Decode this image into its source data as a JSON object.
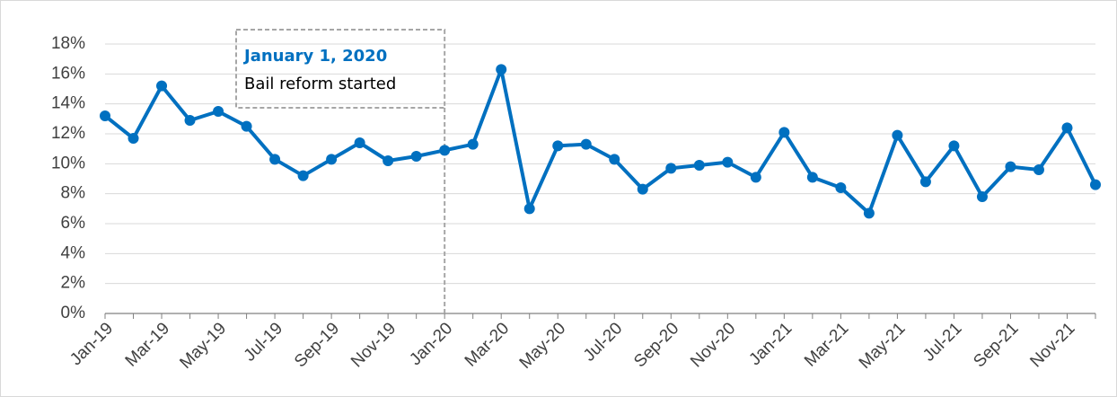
{
  "chart_data": {
    "type": "line",
    "categories": [
      "Jan-19",
      null,
      "Mar-19",
      null,
      "May-19",
      null,
      "Jul-19",
      null,
      "Sep-19",
      null,
      "Nov-19",
      null,
      "Jan-20",
      null,
      "Mar-20",
      null,
      "May-20",
      null,
      "Jul-20",
      null,
      "Sep-20",
      null,
      "Nov-20",
      null,
      "Jan-21",
      null,
      "Mar-21",
      null,
      "May-21",
      null,
      "Jul-21",
      null,
      "Sep-21",
      null,
      "Nov-21",
      null
    ],
    "series": [
      {
        "color": "#0070c0",
        "values": [
          13.2,
          11.7,
          15.2,
          12.9,
          13.5,
          12.5,
          10.3,
          9.2,
          10.3,
          11.4,
          10.2,
          10.5,
          10.9,
          11.3,
          16.3,
          7.0,
          11.2,
          11.3,
          10.3,
          8.3,
          9.7,
          9.9,
          10.1,
          9.1,
          12.1,
          9.1,
          8.4,
          6.7,
          11.9,
          8.8,
          11.2,
          7.8,
          9.8,
          9.6,
          12.4,
          8.6
        ]
      }
    ],
    "ylim": [
      0,
      18
    ],
    "yticks": [
      {
        "value": 0,
        "label": "0%"
      },
      {
        "value": 2,
        "label": "2%"
      },
      {
        "value": 4,
        "label": "4%"
      },
      {
        "value": 6,
        "label": "6%"
      },
      {
        "value": 8,
        "label": "8%"
      },
      {
        "value": 10,
        "label": "10%"
      },
      {
        "value": 12,
        "label": "12%"
      },
      {
        "value": 14,
        "label": "14%"
      },
      {
        "value": 16,
        "label": "16%"
      },
      {
        "value": 18,
        "label": "18%"
      }
    ],
    "grid": true,
    "annotation": {
      "label": "January 1, 2020",
      "text": "Bail reform started",
      "at": "Jan-20"
    }
  }
}
